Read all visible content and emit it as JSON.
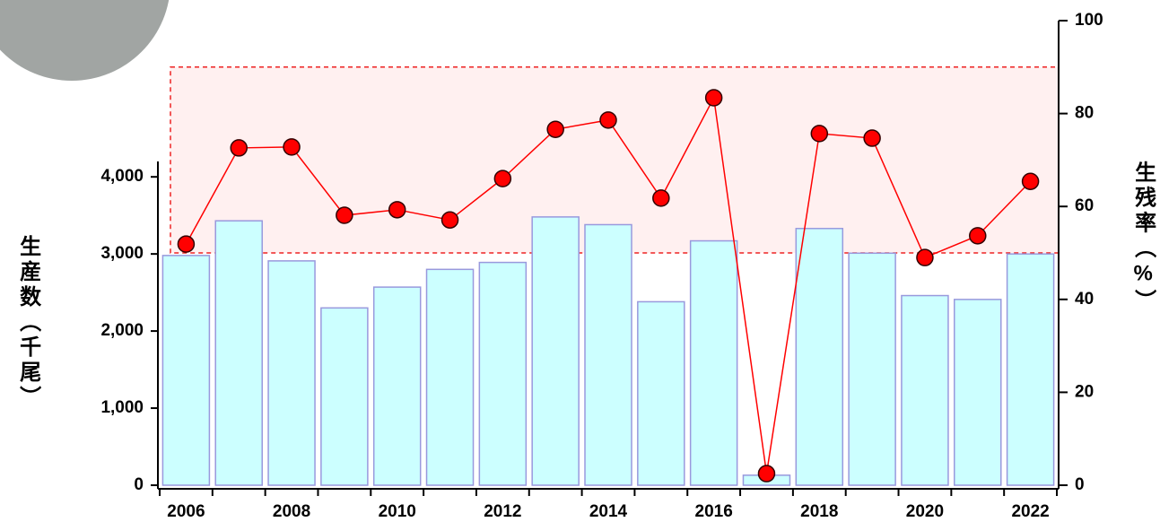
{
  "chart_data": {
    "type": "bar_line",
    "y_label": "生産数（千尾）",
    "y2_label": "生残率（%）",
    "categories": [
      "2006",
      null,
      "2008",
      null,
      "2010",
      null,
      "2012",
      null,
      "2014",
      null,
      "2016",
      null,
      "2018",
      null,
      "2020",
      null,
      "2022"
    ],
    "series": [
      {
        "name": "生産数",
        "color": "#ccffff",
        "edge": "#9999dd",
        "type": "bar",
        "values": [
          2980,
          3430,
          2910,
          2300,
          2570,
          2800,
          2890,
          3480,
          3380,
          2380,
          3170,
          130,
          3330,
          3010,
          2460,
          2410,
          3000
        ]
      },
      {
        "name": "生残率",
        "color": "#ff0000",
        "type": "line",
        "axis": "y2",
        "values": [
          51.9,
          72.6,
          72.8,
          58.1,
          59.3,
          57.1,
          66.0,
          76.6,
          78.6,
          61.8,
          83.4,
          2.5,
          75.7,
          74.7,
          49.0,
          53.7,
          65.4
        ]
      }
    ],
    "ylim": [
      0,
      4200
    ],
    "yticks": [
      0,
      {
        "value": 1000,
        "label": "1,000"
      },
      {
        "value": 2000,
        "label": "2,000"
      },
      {
        "value": 3000,
        "label": "3,000"
      },
      {
        "value": 4000,
        "label": "4,000"
      }
    ],
    "y2lim": [
      0,
      100
    ],
    "y2ticks": [
      0,
      20,
      40,
      60,
      80,
      100
    ],
    "highlight_y2": [
      50,
      90
    ]
  }
}
